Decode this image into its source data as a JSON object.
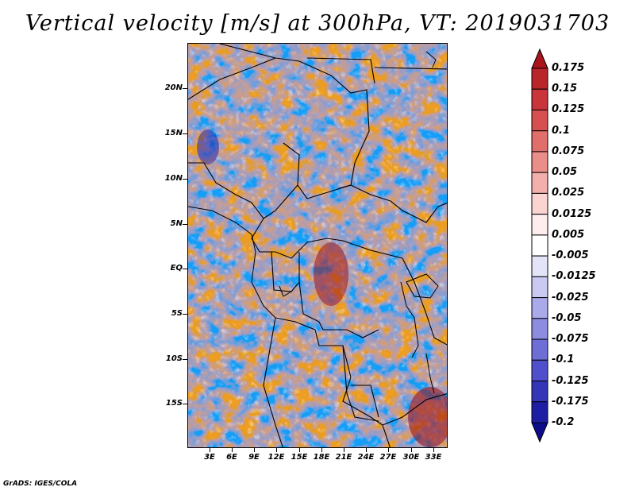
{
  "title": "Vertical velocity [m/s] at 300hPa, VT: 2019031703",
  "footer": "GrADS: IGES/COLA",
  "map": {
    "region": "Central Africa",
    "lat_labels": [
      "20N",
      "15N",
      "10N",
      "5N",
      "EQ",
      "5S",
      "10S",
      "15S"
    ],
    "lon_labels": [
      "3E",
      "6E",
      "9E",
      "12E",
      "15E",
      "18E",
      "21E",
      "24E",
      "27E",
      "30E",
      "33E"
    ]
  },
  "colorbar": {
    "labels": [
      "0.175",
      "0.15",
      "0.125",
      "0.1",
      "0.075",
      "0.05",
      "0.025",
      "0.0125",
      "0.005",
      "-0.005",
      "-0.0125",
      "-0.025",
      "-0.05",
      "-0.075",
      "-0.1",
      "-0.125",
      "-0.175",
      "-0.2"
    ],
    "colors": [
      "#a8151b",
      "#b8252b",
      "#c8353a",
      "#d6504f",
      "#e06e6b",
      "#ea8e8a",
      "#f2b0ac",
      "#f9d4d1",
      "#fdeeed",
      "#ffffff",
      "#e4e4f9",
      "#c9c9f2",
      "#aaaaea",
      "#8c8ce1",
      "#6e6ed7",
      "#5050cd",
      "#3535b8",
      "#1e1ea4",
      "#0d0d8a"
    ]
  }
}
